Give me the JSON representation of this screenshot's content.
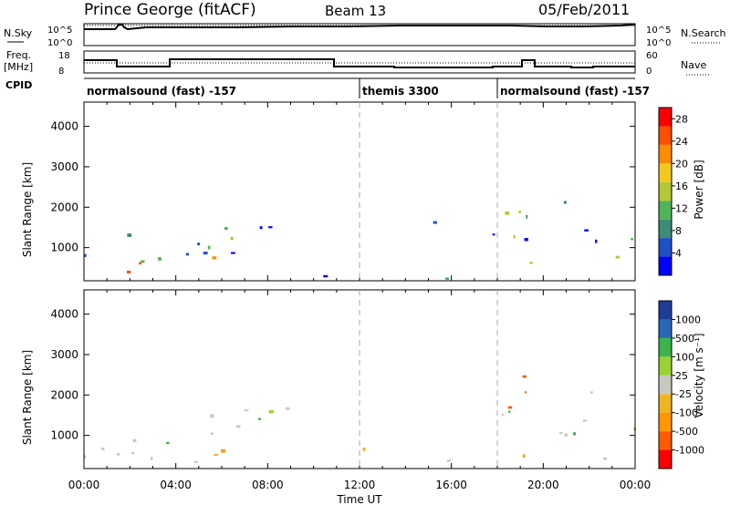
{
  "header": {
    "station": "Prince George (fitACF)",
    "beam": "Beam 13",
    "date": "05/Feb/2011"
  },
  "labels": {
    "nsky": "N.Sky",
    "nsearch": "N.Search",
    "freq_line1": "Freq.",
    "freq_line2": "[MHz]",
    "nave": "Nave",
    "cpid": "CPID",
    "slant_range": "Slant Range [km]",
    "time_ut": "Time UT",
    "power_label": "Power [dB]",
    "velocity_label": "Velocity [m s⁻¹]"
  },
  "noise_panel": {
    "left_ticks": [
      "10^5",
      "10^0"
    ],
    "right_ticks": [
      "10^5",
      "10^0"
    ]
  },
  "freq_panel": {
    "left_ticks": [
      "18",
      "8"
    ],
    "right_ticks": [
      "60",
      "0"
    ]
  },
  "cpid_segments": [
    {
      "label": "normalsound (fast) -157",
      "start_hour": 0
    },
    {
      "label": "themis 3300",
      "start_hour": 12
    },
    {
      "label": "normalsound (fast) -157",
      "start_hour": 18
    }
  ],
  "colors": {
    "power": [
      "#0000ff",
      "#2050c8",
      "#3c8c78",
      "#50b45a",
      "#b4c832",
      "#f5c81e",
      "#ff8c00",
      "#ff5000",
      "#ff0000"
    ],
    "velocity": [
      "#ff0000",
      "#ff5a00",
      "#ff9600",
      "#f0b41e",
      "#c8c8c0",
      "#9ad232",
      "#3cb44b",
      "#2868b4",
      "#1e3c96"
    ]
  },
  "chart_data": [
    {
      "type": "heatmap",
      "title": "Power",
      "x": {
        "label": "Time UT",
        "ticks": [
          "00:00",
          "04:00",
          "08:00",
          "12:00",
          "16:00",
          "20:00",
          "00:00"
        ],
        "range_hours": [
          0,
          24
        ]
      },
      "y": {
        "label": "Slant Range [km]",
        "ticks": [
          1000,
          2000,
          3000,
          4000
        ],
        "range": [
          180,
          4600
        ]
      },
      "colorbar": {
        "label": "Power [dB]",
        "ticks": [
          4,
          8,
          12,
          16,
          20,
          24,
          28
        ],
        "range": [
          0,
          30
        ]
      }
    },
    {
      "type": "heatmap",
      "title": "Velocity",
      "x": {
        "label": "Time UT",
        "ticks": [
          "00:00",
          "04:00",
          "08:00",
          "12:00",
          "16:00",
          "20:00",
          "00:00"
        ],
        "range_hours": [
          0,
          24
        ]
      },
      "y": {
        "label": "Slant Range [km]",
        "ticks": [
          1000,
          2000,
          3000,
          4000
        ],
        "range": [
          180,
          4600
        ]
      },
      "colorbar": {
        "label": "Velocity [m s⁻¹]",
        "ticks": [
          "1000",
          "500",
          "100",
          "25",
          "-25",
          "-100",
          "-500",
          "-1000"
        ]
      }
    }
  ]
}
